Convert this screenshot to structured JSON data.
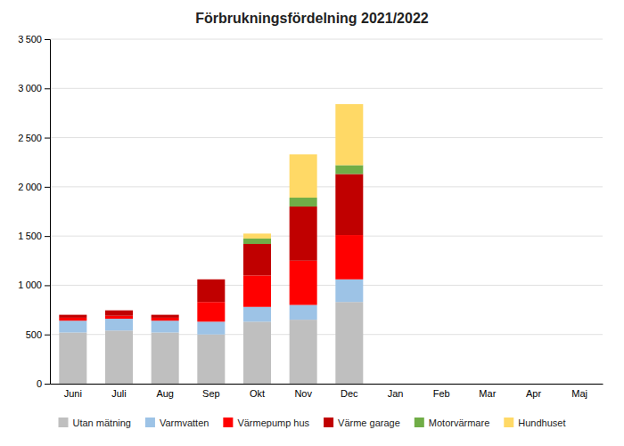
{
  "chart_data": {
    "type": "bar",
    "stacked": true,
    "title": "Förbrukningsfördelning 2021/2022",
    "categories": [
      "Juni",
      "Juli",
      "Aug",
      "Sep",
      "Okt",
      "Nov",
      "Dec",
      "Jan",
      "Feb",
      "Mar",
      "Apr",
      "Maj"
    ],
    "series": [
      {
        "name": "Utan mätning",
        "color": "#bfbfbf",
        "values": [
          520,
          540,
          520,
          500,
          630,
          650,
          830,
          0,
          0,
          0,
          0,
          0
        ]
      },
      {
        "name": "Varmvatten",
        "color": "#9dc3e6",
        "values": [
          120,
          120,
          120,
          130,
          150,
          150,
          230,
          0,
          0,
          0,
          0,
          0
        ]
      },
      {
        "name": "Värmepump hus",
        "color": "#ff0000",
        "values": [
          30,
          30,
          30,
          200,
          320,
          450,
          450,
          0,
          0,
          0,
          0,
          0
        ]
      },
      {
        "name": "Värme garage",
        "color": "#c00000",
        "values": [
          30,
          55,
          30,
          230,
          320,
          550,
          620,
          0,
          0,
          0,
          0,
          0
        ]
      },
      {
        "name": "Motorvärmare",
        "color": "#70ad47",
        "values": [
          0,
          0,
          0,
          0,
          55,
          90,
          90,
          0,
          0,
          0,
          0,
          0
        ]
      },
      {
        "name": "Hundhuset",
        "color": "#ffd966",
        "values": [
          0,
          0,
          0,
          0,
          50,
          440,
          620,
          0,
          0,
          0,
          0,
          0
        ]
      }
    ],
    "ylim": [
      0,
      3500
    ],
    "yticks": [
      0,
      500,
      {
        "value": 1000,
        "label": "1 000"
      },
      {
        "value": 1500,
        "label": "1 500"
      },
      {
        "value": 2000,
        "label": "2 000"
      },
      {
        "value": 2500,
        "label": "2 500"
      },
      {
        "value": 3000,
        "label": "3 000"
      },
      {
        "value": 3500,
        "label": "3 500"
      }
    ],
    "grid": true,
    "legend": "bottom"
  }
}
